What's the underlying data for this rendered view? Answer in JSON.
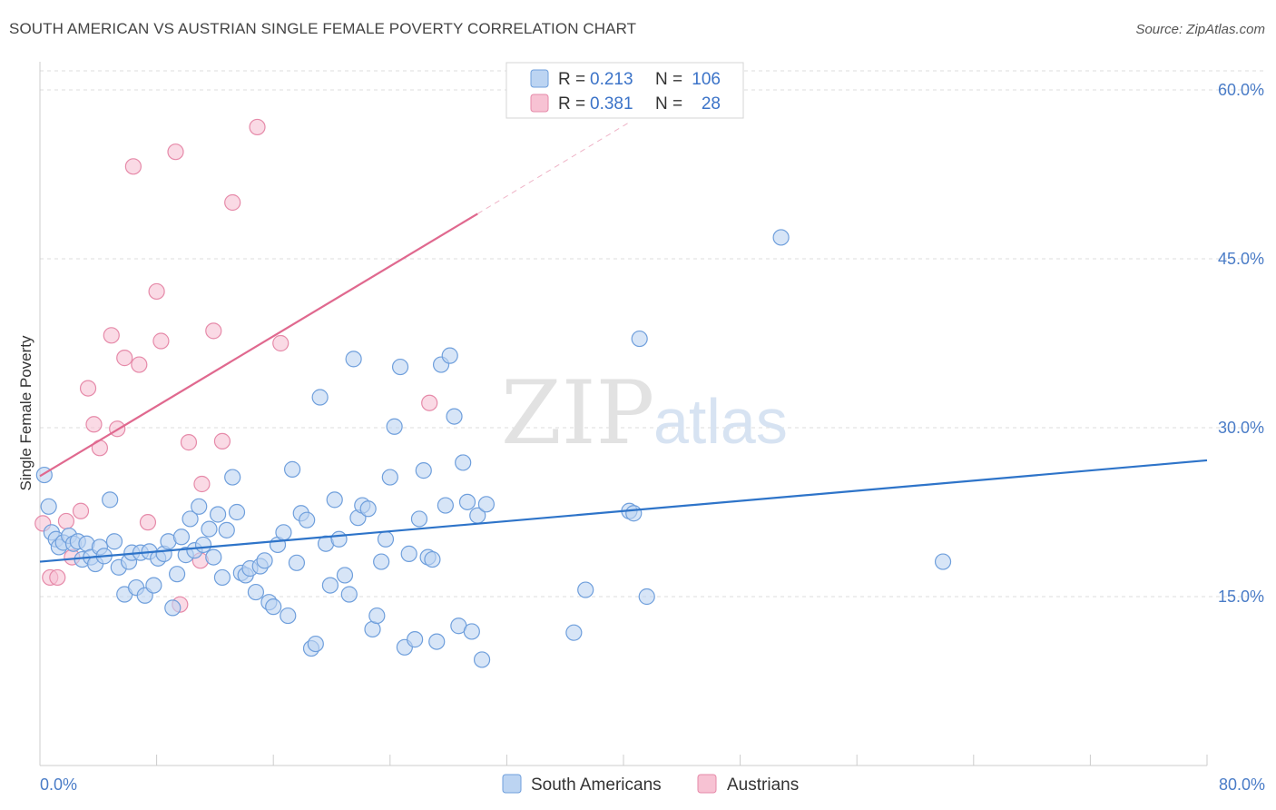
{
  "header": {
    "title": "SOUTH AMERICAN VS AUSTRIAN SINGLE FEMALE POVERTY CORRELATION CHART",
    "source": "Source: ZipAtlas.com"
  },
  "watermark": {
    "zip": "ZIP",
    "atlas": "atlas"
  },
  "legend": {
    "rows": [
      {
        "r_label": "R =",
        "r_value": "0.213",
        "n_label": "N =",
        "n_value": "106"
      },
      {
        "r_label": "R =",
        "r_value": "0.381",
        "n_label": "N =",
        "n_value": "28"
      }
    ]
  },
  "bottom_legend": [
    "South Americans",
    "Austrians"
  ],
  "colors": {
    "blue_fill": "#bcd4f2",
    "blue_stroke": "#6f9fdc",
    "blue_line": "#2e74c9",
    "pink_fill": "#f7c2d3",
    "pink_stroke": "#e68aa9",
    "pink_line": "#e0698f",
    "grid": "#dddddd",
    "axis_text": "#4a7cc7"
  },
  "chart_data": {
    "type": "scatter",
    "title": "SOUTH AMERICAN VS AUSTRIAN SINGLE FEMALE POVERTY CORRELATION CHART",
    "xlabel": "",
    "ylabel": "Single Female Poverty",
    "xlim": [
      0,
      80
    ],
    "ylim": [
      0,
      62.5
    ],
    "x_tick_labels": [
      "0.0%",
      "80.0%"
    ],
    "y_ticks": [
      15,
      30,
      45,
      60
    ],
    "y_tick_labels": [
      "15.0%",
      "30.0%",
      "45.0%",
      "60.0%"
    ],
    "grid": true,
    "legend_position": "top-center",
    "series": [
      {
        "name": "South Americans",
        "color": "#6f9fdc",
        "r": 0.213,
        "n": 106,
        "trend": {
          "x": [
            0,
            80
          ],
          "y": [
            18.1,
            27.1
          ]
        },
        "points": [
          [
            0.3,
            25.8
          ],
          [
            0.6,
            23.0
          ],
          [
            0.8,
            20.7
          ],
          [
            1.1,
            20.1
          ],
          [
            1.3,
            19.4
          ],
          [
            1.6,
            19.8
          ],
          [
            2.0,
            20.4
          ],
          [
            2.3,
            19.7
          ],
          [
            2.6,
            19.9
          ],
          [
            2.9,
            18.3
          ],
          [
            3.2,
            19.7
          ],
          [
            3.5,
            18.5
          ],
          [
            3.8,
            17.9
          ],
          [
            4.1,
            19.4
          ],
          [
            4.4,
            18.6
          ],
          [
            4.8,
            23.6
          ],
          [
            5.1,
            19.9
          ],
          [
            5.4,
            17.6
          ],
          [
            5.8,
            15.2
          ],
          [
            6.1,
            18.1
          ],
          [
            6.3,
            18.9
          ],
          [
            6.6,
            15.8
          ],
          [
            6.9,
            18.9
          ],
          [
            7.2,
            15.1
          ],
          [
            7.5,
            19.0
          ],
          [
            7.8,
            16.0
          ],
          [
            8.1,
            18.4
          ],
          [
            8.5,
            18.8
          ],
          [
            8.8,
            19.9
          ],
          [
            9.1,
            14.0
          ],
          [
            9.4,
            17.0
          ],
          [
            9.7,
            20.3
          ],
          [
            10.0,
            18.7
          ],
          [
            10.3,
            21.9
          ],
          [
            10.6,
            19.1
          ],
          [
            10.9,
            23.0
          ],
          [
            11.2,
            19.6
          ],
          [
            11.6,
            21.0
          ],
          [
            11.9,
            18.5
          ],
          [
            12.2,
            22.3
          ],
          [
            12.5,
            16.7
          ],
          [
            12.8,
            20.9
          ],
          [
            13.2,
            25.6
          ],
          [
            13.5,
            22.5
          ],
          [
            13.8,
            17.1
          ],
          [
            14.1,
            16.9
          ],
          [
            14.4,
            17.5
          ],
          [
            14.8,
            15.4
          ],
          [
            15.1,
            17.7
          ],
          [
            15.4,
            18.2
          ],
          [
            15.7,
            14.5
          ],
          [
            16.0,
            14.1
          ],
          [
            16.3,
            19.6
          ],
          [
            16.7,
            20.7
          ],
          [
            17.0,
            13.3
          ],
          [
            17.3,
            26.3
          ],
          [
            17.6,
            18.0
          ],
          [
            17.9,
            22.4
          ],
          [
            18.3,
            21.8
          ],
          [
            18.6,
            10.4
          ],
          [
            18.9,
            10.8
          ],
          [
            19.2,
            32.7
          ],
          [
            19.6,
            19.7
          ],
          [
            19.9,
            16.0
          ],
          [
            20.2,
            23.6
          ],
          [
            20.5,
            20.1
          ],
          [
            20.9,
            16.9
          ],
          [
            21.2,
            15.2
          ],
          [
            21.5,
            36.1
          ],
          [
            21.8,
            22.0
          ],
          [
            22.1,
            23.1
          ],
          [
            22.5,
            22.8
          ],
          [
            22.8,
            12.1
          ],
          [
            23.1,
            13.3
          ],
          [
            23.4,
            18.1
          ],
          [
            23.7,
            20.1
          ],
          [
            24.0,
            25.6
          ],
          [
            24.3,
            30.1
          ],
          [
            24.7,
            35.4
          ],
          [
            25.0,
            10.5
          ],
          [
            25.3,
            18.8
          ],
          [
            25.7,
            11.2
          ],
          [
            26.0,
            21.9
          ],
          [
            26.3,
            26.2
          ],
          [
            26.6,
            18.5
          ],
          [
            26.9,
            18.3
          ],
          [
            27.2,
            11.0
          ],
          [
            27.5,
            35.6
          ],
          [
            27.8,
            23.1
          ],
          [
            28.1,
            36.4
          ],
          [
            28.4,
            31.0
          ],
          [
            28.7,
            12.4
          ],
          [
            29.0,
            26.9
          ],
          [
            29.3,
            23.4
          ],
          [
            29.6,
            11.9
          ],
          [
            30.0,
            22.2
          ],
          [
            30.3,
            9.4
          ],
          [
            30.6,
            23.2
          ],
          [
            36.6,
            11.8
          ],
          [
            37.4,
            15.6
          ],
          [
            40.4,
            22.6
          ],
          [
            40.7,
            22.4
          ],
          [
            41.1,
            37.9
          ],
          [
            41.6,
            15.0
          ],
          [
            50.8,
            46.9
          ],
          [
            61.9,
            18.1
          ]
        ]
      },
      {
        "name": "Austrians",
        "color": "#e68aa9",
        "r": 0.381,
        "n": 28,
        "trend": {
          "x": [
            0,
            30
          ],
          "y": [
            25.7,
            49.0
          ]
        },
        "trend_extension": {
          "x": [
            30,
            40.5
          ],
          "y": [
            49.0,
            57.2
          ]
        },
        "points": [
          [
            0.2,
            21.5
          ],
          [
            0.7,
            16.7
          ],
          [
            1.2,
            16.7
          ],
          [
            1.8,
            21.7
          ],
          [
            2.2,
            18.5
          ],
          [
            2.8,
            22.6
          ],
          [
            3.3,
            33.5
          ],
          [
            3.7,
            30.3
          ],
          [
            4.1,
            28.2
          ],
          [
            4.9,
            38.2
          ],
          [
            5.3,
            29.9
          ],
          [
            5.8,
            36.2
          ],
          [
            6.4,
            53.2
          ],
          [
            6.8,
            35.6
          ],
          [
            7.4,
            21.6
          ],
          [
            8.0,
            42.1
          ],
          [
            8.3,
            37.7
          ],
          [
            9.3,
            54.5
          ],
          [
            9.6,
            14.3
          ],
          [
            10.2,
            28.7
          ],
          [
            11.1,
            25.0
          ],
          [
            11.0,
            18.2
          ],
          [
            11.9,
            38.6
          ],
          [
            12.5,
            28.8
          ],
          [
            13.2,
            50.0
          ],
          [
            14.9,
            56.7
          ],
          [
            16.5,
            37.5
          ],
          [
            26.7,
            32.2
          ]
        ]
      }
    ]
  }
}
